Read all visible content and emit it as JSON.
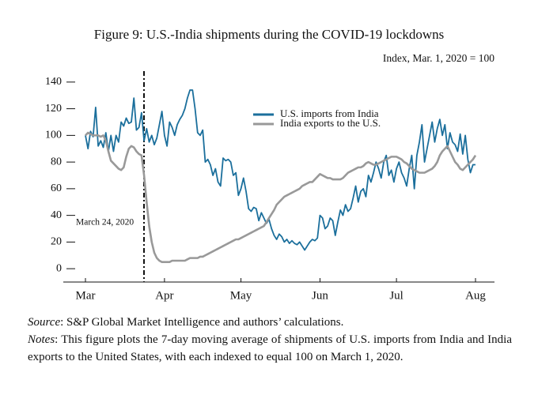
{
  "chart_data": {
    "type": "line",
    "title": "Figure 9: U.S.-India shipments during the COVID-19 lockdowns",
    "subtitle": "Index, Mar. 1, 2020 = 100",
    "annotation": "March 24, 2020",
    "categories": [
      "Mar",
      null,
      null,
      null,
      null,
      null,
      null,
      null,
      null,
      null,
      null,
      null,
      null,
      null,
      null,
      null,
      null,
      null,
      null,
      null,
      null,
      null,
      null,
      null,
      null,
      null,
      null,
      null,
      null,
      null,
      null,
      "Apr",
      null,
      null,
      null,
      null,
      null,
      null,
      null,
      null,
      null,
      null,
      null,
      null,
      null,
      null,
      null,
      null,
      null,
      null,
      null,
      null,
      null,
      null,
      null,
      null,
      null,
      null,
      null,
      null,
      null,
      "May",
      null,
      null,
      null,
      null,
      null,
      null,
      null,
      null,
      null,
      null,
      null,
      null,
      null,
      null,
      null,
      null,
      null,
      null,
      null,
      null,
      null,
      null,
      null,
      null,
      null,
      null,
      null,
      null,
      null,
      null,
      "Jun",
      null,
      null,
      null,
      null,
      null,
      null,
      null,
      null,
      null,
      null,
      null,
      null,
      null,
      null,
      null,
      null,
      null,
      null,
      null,
      null,
      null,
      null,
      null,
      null,
      null,
      null,
      null,
      null,
      null,
      "Jul",
      null,
      null,
      null,
      null,
      null,
      null,
      null,
      null,
      null,
      null,
      null,
      null,
      null,
      null,
      null,
      null,
      null,
      null,
      null,
      null,
      null,
      null,
      null,
      null,
      null,
      null,
      null,
      null,
      null,
      null,
      "Aug"
    ],
    "series": [
      {
        "name": "U.S. imports from India",
        "color": "#1b6f9c",
        "values": [
          100,
          90,
          103,
          99,
          121,
          92,
          96,
          91,
          102,
          88,
          100,
          88,
          100,
          95,
          110,
          107,
          113,
          109,
          110,
          128,
          104,
          106,
          117,
          96,
          105,
          95,
          100,
          93,
          98,
          108,
          118,
          100,
          92,
          110,
          106,
          100,
          108,
          112,
          115,
          120,
          128,
          134,
          134,
          120,
          102,
          100,
          104,
          80,
          82,
          78,
          70,
          75,
          65,
          62,
          83,
          81,
          82,
          80,
          70,
          72,
          55,
          60,
          68,
          58,
          45,
          43,
          46,
          45,
          36,
          42,
          38,
          34,
          37,
          30,
          25,
          22,
          26,
          24,
          20,
          22,
          19,
          21,
          19,
          18,
          20,
          17,
          14,
          17,
          20,
          22,
          21,
          23,
          40,
          38,
          30,
          32,
          38,
          36,
          25,
          35,
          44,
          40,
          48,
          43,
          45,
          53,
          62,
          50,
          58,
          60,
          54,
          70,
          65,
          72,
          80,
          75,
          68,
          80,
          85,
          70,
          74,
          65,
          75,
          80,
          72,
          68,
          62,
          75,
          85,
          60,
          85,
          95,
          108,
          80,
          90,
          100,
          110,
          95,
          105,
          112,
          100,
          108,
          90,
          102,
          95,
          93,
          88,
          101,
          86,
          100,
          82,
          72,
          78,
          78
        ]
      },
      {
        "name": "India exports to the U.S.",
        "color": "#999999",
        "values": [
          100,
          102,
          101,
          100,
          100,
          100,
          99,
          100,
          96,
          88,
          81,
          79,
          77,
          75,
          74,
          76,
          84,
          90,
          92,
          91,
          88,
          86,
          85,
          70,
          50,
          32,
          20,
          12,
          8,
          6,
          5,
          5,
          5,
          5,
          6,
          6,
          6,
          6,
          6,
          6,
          7,
          8,
          8,
          8,
          8,
          9,
          9,
          10,
          11,
          12,
          13,
          14,
          15,
          16,
          17,
          18,
          19,
          20,
          21,
          22,
          22,
          23,
          24,
          25,
          26,
          27,
          28,
          29,
          30,
          31,
          32,
          35,
          38,
          41,
          44,
          48,
          50,
          52,
          54,
          55,
          56,
          57,
          58,
          59,
          60,
          62,
          63,
          64,
          65,
          65,
          67,
          69,
          71,
          70,
          69,
          68,
          68,
          67,
          67,
          67,
          67,
          68,
          70,
          72,
          73,
          74,
          75,
          76,
          76,
          77,
          79,
          80,
          79,
          78,
          78,
          79,
          80,
          81,
          82,
          83,
          84,
          84,
          84,
          83,
          82,
          80,
          79,
          77,
          75,
          74,
          73,
          72,
          72,
          72,
          73,
          74,
          75,
          77,
          80,
          85,
          88,
          90,
          92,
          88,
          84,
          80,
          78,
          75,
          74,
          76,
          78,
          80,
          82,
          85
        ]
      }
    ],
    "ylim": [
      -10,
      150
    ],
    "yticks": [
      0,
      20,
      40,
      60,
      80,
      100,
      120,
      140
    ],
    "grid": false,
    "legend": "top-right"
  },
  "notes": {
    "source_label": "Source",
    "source": ": S&P Global Market Intelligence and authors’ calculations.",
    "notes_label": "Notes",
    "notes": ": This figure plots the 7-day moving average of shipments of U.S. imports from India and India exports to the United States, with each indexed to equal 100 on March 1, 2020."
  }
}
